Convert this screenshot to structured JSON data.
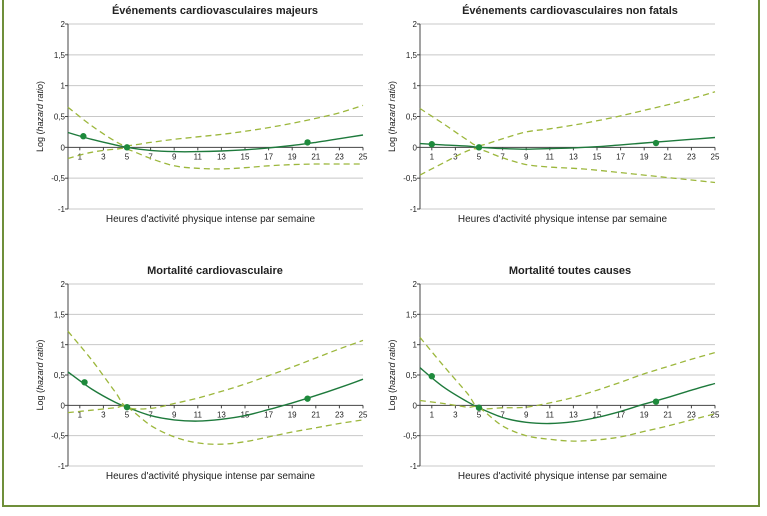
{
  "chart_data": [
    {
      "type": "line",
      "title": "Événements cardiovasculaires majeurs",
      "xlabel": "Heures d'activité physique intense par semaine",
      "ylabel": "Log (hazard ratio)",
      "xlim": [
        0,
        25
      ],
      "ylim": [
        -1,
        2
      ],
      "xticks": [
        1,
        3,
        5,
        7,
        9,
        11,
        13,
        15,
        17,
        19,
        21,
        23,
        25
      ],
      "yticks": [
        -1,
        -0.5,
        0,
        0.5,
        1,
        1.5,
        2
      ],
      "grid": true,
      "series": [
        {
          "role": "estimate",
          "x": [
            0,
            2,
            4,
            5,
            7,
            9,
            11,
            13,
            15,
            17,
            19,
            21,
            23,
            25
          ],
          "y": [
            0.24,
            0.13,
            0.04,
            0,
            -0.05,
            -0.07,
            -0.07,
            -0.06,
            -0.04,
            -0.01,
            0.03,
            0.08,
            0.14,
            0.2
          ]
        },
        {
          "role": "upper",
          "x": [
            0,
            2,
            4,
            5,
            7,
            9,
            11,
            13,
            15,
            17,
            19,
            21,
            23,
            25
          ],
          "y": [
            0.65,
            0.35,
            0.1,
            0.03,
            0.08,
            0.13,
            0.17,
            0.21,
            0.26,
            0.32,
            0.39,
            0.47,
            0.56,
            0.68
          ]
        },
        {
          "role": "lower",
          "x": [
            0,
            2,
            4,
            5,
            7,
            9,
            11,
            13,
            15,
            17,
            19,
            21,
            23,
            25
          ],
          "y": [
            -0.18,
            -0.08,
            -0.03,
            -0.03,
            -0.18,
            -0.3,
            -0.34,
            -0.35,
            -0.33,
            -0.3,
            -0.28,
            -0.27,
            -0.27,
            -0.27
          ]
        }
      ],
      "points": [
        {
          "x": 1.3,
          "y": 0.18
        },
        {
          "x": 5,
          "y": 0
        },
        {
          "x": 20.3,
          "y": 0.08
        }
      ]
    },
    {
      "type": "line",
      "title": "Événements cardiovasculaires non fatals",
      "xlabel": "Heures d'activité physique intense par semaine",
      "ylabel": "Log (hazard ratio)",
      "xlim": [
        0,
        25
      ],
      "ylim": [
        -1,
        2
      ],
      "xticks": [
        1,
        3,
        5,
        7,
        9,
        11,
        13,
        15,
        17,
        19,
        21,
        23,
        25
      ],
      "yticks": [
        -1,
        -0.5,
        0,
        0.5,
        1,
        1.5,
        2
      ],
      "grid": true,
      "series": [
        {
          "role": "estimate",
          "x": [
            0,
            2,
            4,
            5,
            7,
            9,
            11,
            13,
            15,
            17,
            19,
            21,
            23,
            25
          ],
          "y": [
            0.06,
            0.04,
            0.02,
            0,
            -0.02,
            -0.03,
            -0.02,
            -0.01,
            0.01,
            0.04,
            0.07,
            0.1,
            0.13,
            0.16
          ]
        },
        {
          "role": "upper",
          "x": [
            0,
            2,
            4,
            5,
            7,
            9,
            11,
            13,
            15,
            17,
            19,
            21,
            23,
            25
          ],
          "y": [
            0.63,
            0.38,
            0.12,
            0.03,
            0.14,
            0.25,
            0.3,
            0.36,
            0.43,
            0.51,
            0.6,
            0.69,
            0.79,
            0.9
          ]
        },
        {
          "role": "lower",
          "x": [
            0,
            2,
            4,
            5,
            7,
            9,
            11,
            13,
            15,
            17,
            19,
            21,
            23,
            25
          ],
          "y": [
            -0.45,
            -0.25,
            -0.06,
            -0.03,
            -0.17,
            -0.28,
            -0.32,
            -0.34,
            -0.37,
            -0.41,
            -0.45,
            -0.49,
            -0.53,
            -0.57
          ]
        }
      ],
      "points": [
        {
          "x": 1,
          "y": 0.05
        },
        {
          "x": 5,
          "y": 0
        },
        {
          "x": 20,
          "y": 0.07
        }
      ]
    },
    {
      "type": "line",
      "title": "Mortalité cardiovasculaire",
      "xlabel": "Heures d'activité physique intense par semaine",
      "ylabel": "Log (hazard ratio)",
      "xlim": [
        0,
        25
      ],
      "ylim": [
        -1,
        2
      ],
      "xticks": [
        1,
        3,
        5,
        7,
        9,
        11,
        13,
        15,
        17,
        19,
        21,
        23,
        25
      ],
      "yticks": [
        -1,
        -0.5,
        0,
        0.5,
        1,
        1.5,
        2
      ],
      "grid": true,
      "series": [
        {
          "role": "estimate",
          "x": [
            0,
            2,
            4,
            5,
            7,
            9,
            11,
            13,
            15,
            17,
            19,
            21,
            23,
            25
          ],
          "y": [
            0.55,
            0.27,
            0.05,
            -0.03,
            -0.17,
            -0.24,
            -0.26,
            -0.23,
            -0.17,
            -0.07,
            0.04,
            0.16,
            0.29,
            0.43
          ]
        },
        {
          "role": "upper",
          "x": [
            0,
            2,
            4,
            5,
            7,
            9,
            11,
            13,
            15,
            17,
            19,
            21,
            23,
            25
          ],
          "y": [
            1.22,
            0.75,
            0.22,
            -0.03,
            -0.05,
            0.03,
            0.12,
            0.23,
            0.35,
            0.49,
            0.63,
            0.78,
            0.93,
            1.07
          ]
        },
        {
          "role": "lower",
          "x": [
            0,
            2,
            4,
            5,
            7,
            9,
            11,
            13,
            15,
            17,
            19,
            21,
            23,
            25
          ],
          "y": [
            -0.12,
            -0.08,
            -0.04,
            -0.03,
            -0.33,
            -0.52,
            -0.62,
            -0.64,
            -0.6,
            -0.52,
            -0.44,
            -0.37,
            -0.3,
            -0.24
          ]
        }
      ],
      "points": [
        {
          "x": 1.4,
          "y": 0.38
        },
        {
          "x": 5,
          "y": -0.03
        },
        {
          "x": 20.3,
          "y": 0.11
        }
      ]
    },
    {
      "type": "line",
      "title": "Mortalité toutes causes",
      "xlabel": "Heures d'activité physique intense par semaine",
      "ylabel": "Log (hazard ratio)",
      "xlim": [
        0,
        25
      ],
      "ylim": [
        -1,
        2
      ],
      "xticks": [
        1,
        3,
        5,
        7,
        9,
        11,
        13,
        15,
        17,
        19,
        21,
        23,
        25
      ],
      "yticks": [
        -1,
        -0.5,
        0,
        0.5,
        1,
        1.5,
        2
      ],
      "grid": true,
      "series": [
        {
          "role": "estimate",
          "x": [
            0,
            2,
            4,
            5,
            7,
            9,
            11,
            13,
            15,
            17,
            19,
            21,
            23,
            25
          ],
          "y": [
            0.62,
            0.3,
            0.06,
            -0.04,
            -0.2,
            -0.28,
            -0.3,
            -0.27,
            -0.2,
            -0.1,
            0.02,
            0.13,
            0.25,
            0.36
          ]
        },
        {
          "role": "upper",
          "x": [
            0,
            2,
            4,
            5,
            7,
            9,
            11,
            13,
            15,
            17,
            19,
            21,
            23,
            25
          ],
          "y": [
            1.12,
            0.65,
            0.2,
            -0.04,
            -0.04,
            -0.03,
            0.04,
            0.13,
            0.25,
            0.38,
            0.52,
            0.64,
            0.76,
            0.87
          ]
        },
        {
          "role": "lower",
          "x": [
            0,
            2,
            4,
            5,
            7,
            9,
            11,
            13,
            15,
            17,
            19,
            21,
            23,
            25
          ],
          "y": [
            0.08,
            0.03,
            -0.03,
            -0.04,
            -0.34,
            -0.5,
            -0.56,
            -0.59,
            -0.57,
            -0.52,
            -0.43,
            -0.34,
            -0.24,
            -0.14
          ]
        }
      ],
      "points": [
        {
          "x": 1,
          "y": 0.48
        },
        {
          "x": 5,
          "y": -0.04
        },
        {
          "x": 20,
          "y": 0.06
        }
      ]
    }
  ],
  "colors": {
    "estimate": "#1e7a3c",
    "ci": "#9cb73c",
    "point": "#1e8a3c",
    "grid": "#c8c8c8",
    "frame": "#6f8f3a"
  }
}
